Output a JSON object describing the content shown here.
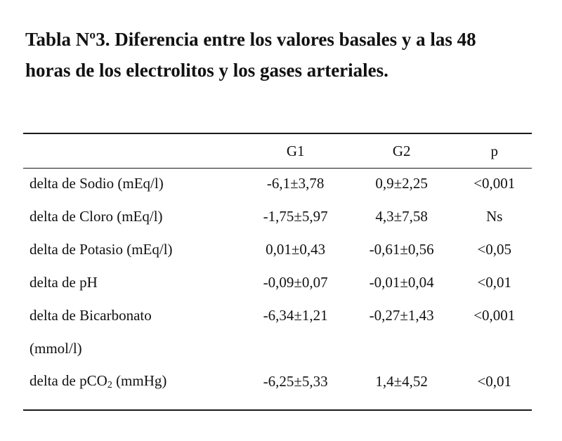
{
  "title": {
    "line1": "Tabla Nº3. Diferencia entre los valores basales y a las 48",
    "line2": "horas de los electrolitos y los gases arteriales."
  },
  "table": {
    "headers": [
      "",
      "G1",
      "G2",
      "p"
    ],
    "rows": [
      {
        "label": "delta de Sodio (mEq/l)",
        "g1": "-6,1±3,78",
        "g2": "0,9±2,25",
        "p": "<0,001"
      },
      {
        "label": "delta de Cloro (mEq/l)",
        "g1": "-1,75±5,97",
        "g2": "4,3±7,58",
        "p": "Ns"
      },
      {
        "label": "delta de Potasio (mEq/l)",
        "g1": "0,01±0,43",
        "g2": "-0,61±0,56",
        "p": "<0,05"
      },
      {
        "label": "delta de pH",
        "g1": "-0,09±0,07",
        "g2": "-0,01±0,04",
        "p": "<0,01"
      },
      {
        "label": "delta de Bicarbonato",
        "g1": "-6,34±1,21",
        "g2": "-0,27±1,43",
        "p": "<0,001"
      },
      {
        "label": "(mmol/l)",
        "g1": "",
        "g2": "",
        "p": ""
      },
      {
        "label_pre": "delta de pCO",
        "label_sub": "2",
        "label_post": " (mmHg)",
        "g1": "-6,25±5,33",
        "g2": "1,4±4,52",
        "p": "<0,01"
      }
    ]
  }
}
